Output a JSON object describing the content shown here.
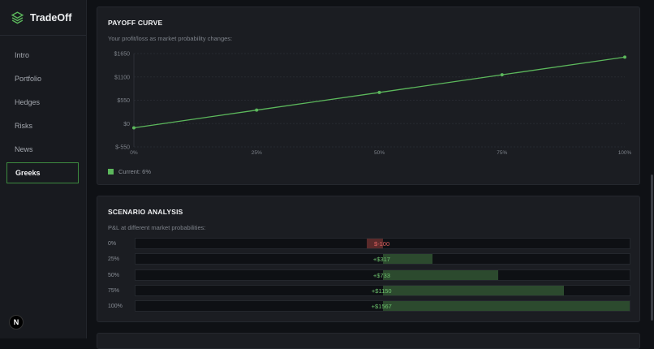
{
  "app": {
    "name": "TradeOff",
    "logo_icon": "layers-icon",
    "badge": "N"
  },
  "sidebar": {
    "items": [
      {
        "label": "Intro"
      },
      {
        "label": "Portfolio"
      },
      {
        "label": "Hedges"
      },
      {
        "label": "Risks"
      },
      {
        "label": "News"
      },
      {
        "label": "Greeks",
        "active": true
      }
    ]
  },
  "payoff": {
    "title": "PAYOFF CURVE",
    "subtitle": "Your profit/loss as market probability changes:",
    "legend": "Current: 6%"
  },
  "chart_data": {
    "type": "line",
    "x": [
      "0%",
      "25%",
      "50%",
      "75%",
      "100%"
    ],
    "x_values": [
      0,
      25,
      50,
      75,
      100
    ],
    "y_values": [
      -100,
      317,
      733,
      1150,
      1567
    ],
    "y_ticks": [
      "$1650",
      "$1100",
      "$550",
      "$0",
      "$-550"
    ],
    "y_tick_values": [
      1650,
      1100,
      550,
      0,
      -550
    ],
    "ylim": [
      -550,
      1650
    ],
    "xlim": [
      0,
      100
    ],
    "line_color": "#5cb85c",
    "grid": true
  },
  "scenario": {
    "title": "SCENARIO ANALYSIS",
    "subtitle": "P&L at different market probabilities:",
    "max_abs": 1567,
    "rows": [
      {
        "label": "0%",
        "value": -100,
        "text": "$-100"
      },
      {
        "label": "25%",
        "value": 317,
        "text": "+$317"
      },
      {
        "label": "50%",
        "value": 733,
        "text": "+$733"
      },
      {
        "label": "75%",
        "value": 1150,
        "text": "+$1150"
      },
      {
        "label": "100%",
        "value": 1567,
        "text": "+$1567"
      }
    ],
    "colors": {
      "positive": "#2c4a2e",
      "negative": "#5a2a2a",
      "positive_text": "#6cc06c",
      "negative_text": "#e06060"
    }
  }
}
